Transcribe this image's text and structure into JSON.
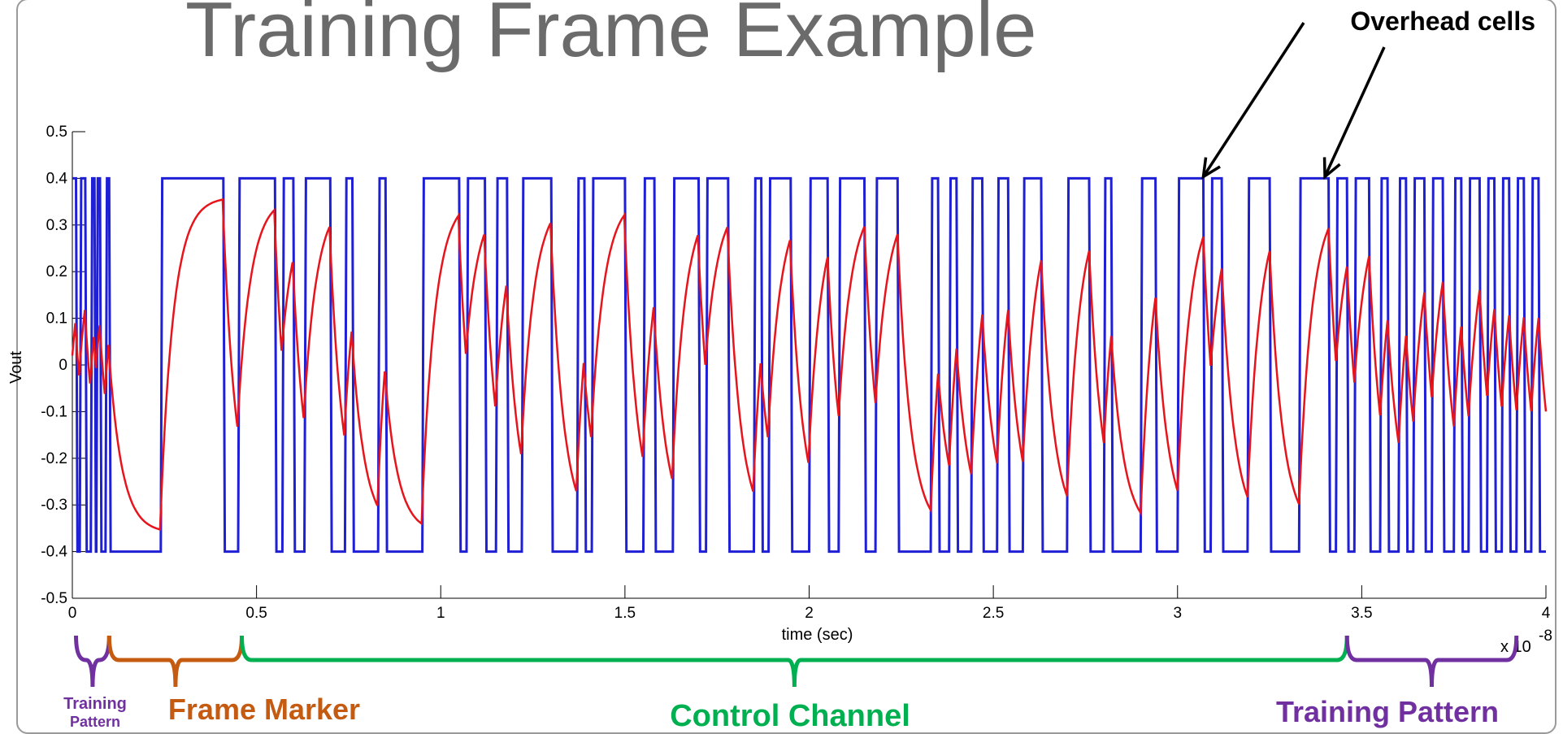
{
  "slide": {
    "title": "Training Frame Example"
  },
  "chart_data": {
    "type": "line",
    "title": "",
    "xlabel": "time (sec)",
    "ylabel": "Vout",
    "x_exponent": "x 10",
    "x_exponent_power": "-8",
    "xlim": [
      0,
      4
    ],
    "ylim": [
      -0.5,
      0.5
    ],
    "xticks": [
      0,
      0.5,
      1,
      1.5,
      2,
      2.5,
      3,
      3.5,
      4
    ],
    "xtick_labels": [
      "0",
      "0.5",
      "1",
      "1.5",
      "2",
      "2.5",
      "3",
      "3.5",
      "4"
    ],
    "yticks": [
      0.5,
      0.4,
      0.3,
      0.2,
      0.1,
      0,
      -0.1,
      -0.2,
      -0.3,
      -0.4,
      -0.5
    ],
    "ytick_labels": [
      "0.5",
      "0.4",
      "0.3",
      "0.2",
      "0.1",
      "0",
      "-0.1",
      "-0.2",
      "-0.3",
      "-0.4",
      "-0.5"
    ],
    "grid": false,
    "series": [
      {
        "color": "#1f1fd6",
        "high": 0.4,
        "low": -0.4,
        "transitions": [
          0.01,
          0.02,
          0.035,
          0.05,
          0.06,
          0.065,
          0.075,
          0.09,
          0.1,
          0.24,
          0.41,
          0.45,
          0.55,
          0.57,
          0.6,
          0.63,
          0.7,
          0.74,
          0.76,
          0.83,
          0.85,
          0.95,
          1.05,
          1.07,
          1.12,
          1.15,
          1.18,
          1.22,
          1.3,
          1.37,
          1.39,
          1.41,
          1.5,
          1.55,
          1.58,
          1.63,
          1.7,
          1.72,
          1.78,
          1.85,
          1.87,
          1.89,
          1.95,
          2.0,
          2.05,
          2.08,
          2.15,
          2.18,
          2.24,
          2.33,
          2.35,
          2.38,
          2.4,
          2.44,
          2.47,
          2.51,
          2.54,
          2.58,
          2.63,
          2.7,
          2.76,
          2.8,
          2.82,
          2.9,
          2.94,
          3.0,
          3.07,
          3.09,
          3.12,
          3.19,
          3.25,
          3.33,
          3.41,
          3.43,
          3.46,
          3.48,
          3.52,
          3.55,
          3.57,
          3.6,
          3.62,
          3.64,
          3.67,
          3.69,
          3.72,
          3.75,
          3.77,
          3.79,
          3.82,
          3.84,
          3.86,
          3.88,
          3.9,
          3.92,
          3.94,
          3.96,
          3.98
        ]
      },
      {
        "color": "#e8141c",
        "tau": 0.035,
        "target_scale": 0.9,
        "start": 0.0
      }
    ]
  },
  "annotations": {
    "overhead_label": "Overhead cells",
    "overhead_arrow_targets": [
      {
        "x": 3.07,
        "y": 0.4
      },
      {
        "x": 3.4,
        "y": 0.4
      }
    ]
  },
  "segments": [
    {
      "label": "Training\nPattern",
      "label_line1": "Training",
      "label_line2": "Pattern",
      "x0": 0.01,
      "x1": 0.1,
      "color": "#7030a0"
    },
    {
      "label": "Frame Marker",
      "x0": 0.1,
      "x1": 0.46,
      "color": "#c55a11"
    },
    {
      "label": "Control Channel",
      "x0": 0.46,
      "x1": 3.46,
      "color": "#00b050"
    },
    {
      "label": "Training Pattern",
      "x0": 3.46,
      "x1": 3.92,
      "color": "#7030a0"
    }
  ]
}
